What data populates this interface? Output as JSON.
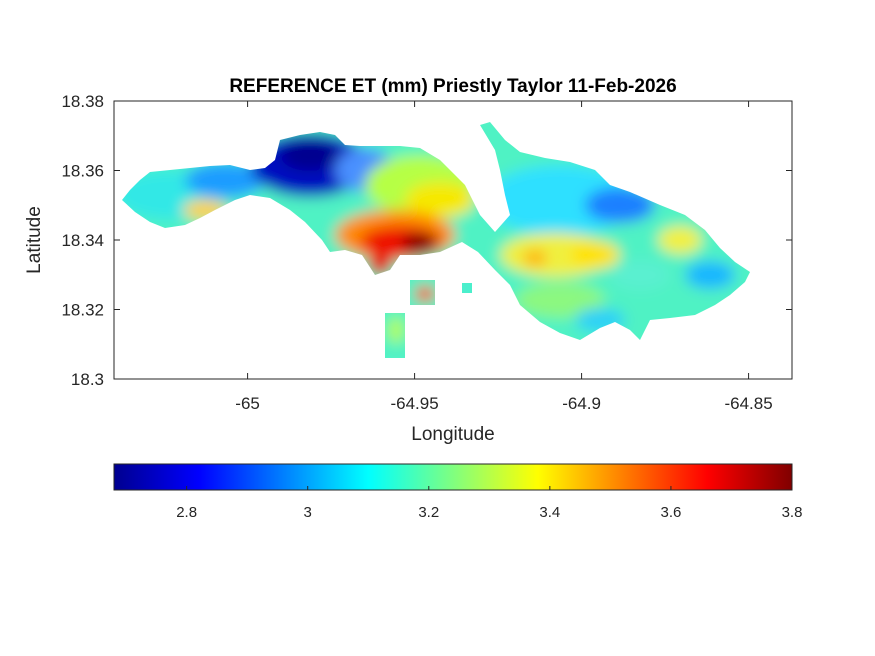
{
  "chart_data": {
    "type": "heatmap",
    "title": "REFERENCE ET (mm) Priestly Taylor 11-Feb-2026",
    "xlabel": "Longitude",
    "ylabel": "Latitude",
    "xlim": [
      -65.04,
      -64.837
    ],
    "ylim": [
      18.3,
      18.38
    ],
    "xticks": [
      -65,
      -64.95,
      -64.9,
      -64.85
    ],
    "xtick_labels": [
      "-65",
      "-64.95",
      "-64.9",
      "-64.85"
    ],
    "yticks": [
      18.3,
      18.32,
      18.34,
      18.36,
      18.38
    ],
    "ytick_labels": [
      "18.3",
      "18.32",
      "18.34",
      "18.36",
      "18.38"
    ],
    "colorbar": {
      "orientation": "horizontal",
      "placement": "below",
      "colormap": "jet",
      "range": [
        2.68,
        3.8
      ],
      "ticks": [
        2.8,
        3,
        3.2,
        3.4,
        3.6,
        3.8
      ],
      "tick_labels": [
        "2.8",
        "3",
        "3.2",
        "3.4",
        "3.6",
        "3.8"
      ]
    },
    "grid": false,
    "regions": [
      {
        "name": "west-tail",
        "value": 3.1
      },
      {
        "name": "north-low",
        "value": 2.72
      },
      {
        "name": "central-high",
        "value": 3.78
      },
      {
        "name": "east-body",
        "value": 3.15
      }
    ]
  }
}
